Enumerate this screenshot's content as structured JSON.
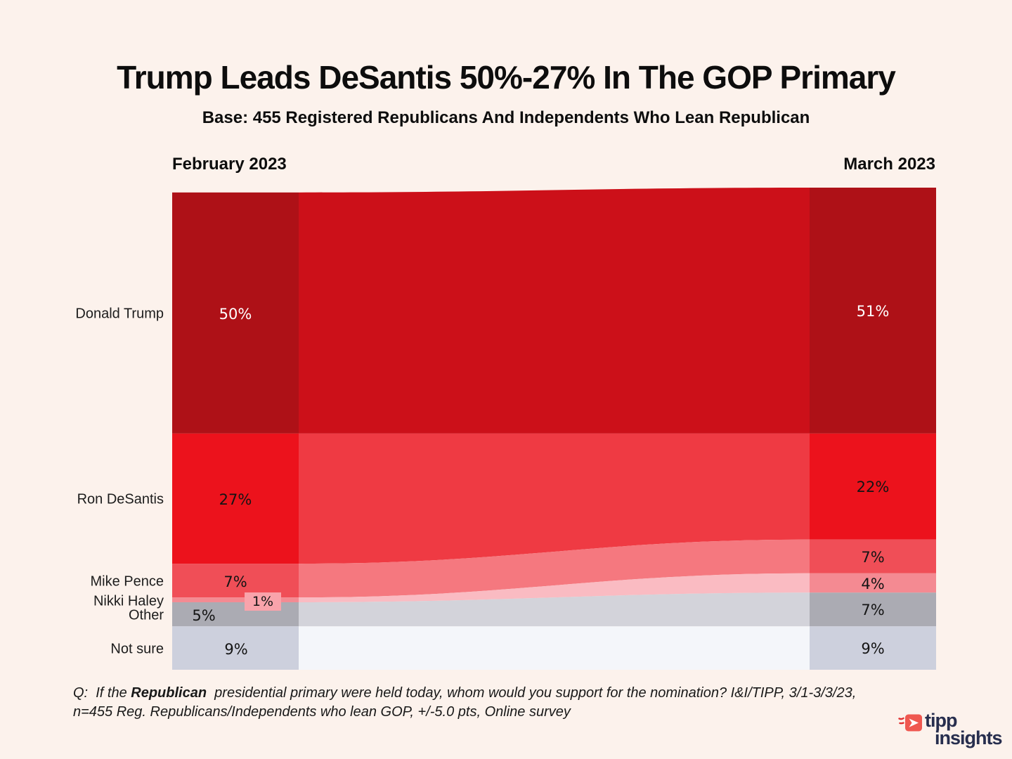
{
  "header": {
    "title": "Trump Leads DeSantis 50%-27% In The GOP Primary",
    "subtitle": "Base: 455 Registered Republicans And Independents Who Lean Republican"
  },
  "chart_data": {
    "type": "area",
    "layout_hint": "two-column slope/flow (alluvial) comparison, columns left and right, flows connecting same category, no axes or gridlines",
    "columns": [
      {
        "label": "February 2023"
      },
      {
        "label": "March 2023"
      }
    ],
    "categories": [
      "Donald Trump",
      "Ron DeSantis",
      "Mike Pence",
      "Nikki Haley",
      "Other",
      "Not sure"
    ],
    "series": [
      {
        "name": "February 2023",
        "values": [
          50,
          27,
          7,
          1,
          5,
          9
        ]
      },
      {
        "name": "March 2023",
        "values": [
          51,
          22,
          7,
          4,
          7,
          9
        ]
      }
    ],
    "value_suffix": "%",
    "colors": {
      "background": "#FCF2EC",
      "bars": [
        "#AE1117",
        "#EC121C",
        "#F04E57",
        "#F48A92",
        "#ABABB3",
        "#CDD0DD"
      ],
      "flows": [
        "#CC1019",
        "#EF3A43",
        "#F5787F",
        "#FABBC2",
        "#D3D3DA",
        "#F4F6FA"
      ],
      "value_text_feb": [
        "#FFFFFF",
        "#141414",
        "#141414",
        "#141414",
        "#141414",
        "#141414"
      ],
      "value_text_march": [
        "#FFFFFF",
        "#141414",
        "#141414",
        "#141414",
        "#141414",
        "#141414"
      ],
      "haley_chip": "#F9A3AB"
    }
  },
  "footnote": {
    "q_prefix": "Q:  If the ",
    "q_bold": "Republican",
    "q_line1_rest": "  presidential primary were held today, whom would you support for the nomination? I&I/TIPP, 3/1-3/3/23,",
    "line2": "n=455 Reg. Republicans/Independents who lean GOP, +/-5.0 pts, Online survey"
  },
  "logo": {
    "icon": "arrow-play-icon",
    "line1": "tipp",
    "line2": "insights",
    "navy": "#272E4E",
    "red": "#EF5850"
  }
}
